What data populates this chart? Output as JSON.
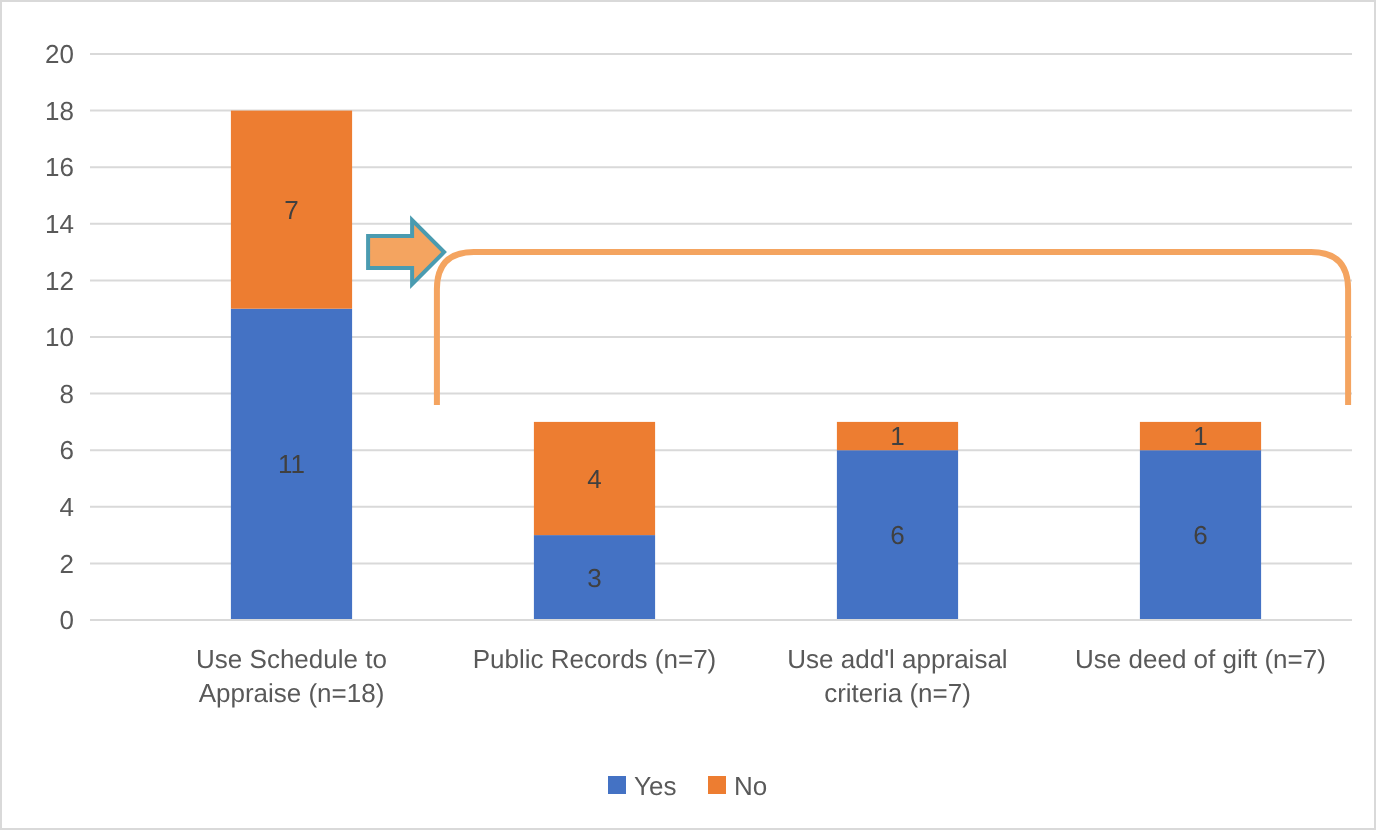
{
  "chart_data": {
    "type": "bar",
    "stacked": true,
    "categories": [
      "Use Schedule to Appraise (n=18)",
      "Public Records (n=7)",
      "Use add'l appraisal criteria (n=7)",
      "Use deed of gift (n=7)"
    ],
    "series": [
      {
        "name": "Yes",
        "color": "#4472c4",
        "values": [
          11,
          3,
          6,
          6
        ]
      },
      {
        "name": "No",
        "color": "#ed7d31",
        "values": [
          7,
          4,
          1,
          1
        ]
      }
    ],
    "ylim": [
      0,
      20
    ],
    "yticks": [
      0,
      2,
      4,
      6,
      8,
      10,
      12,
      14,
      16,
      18,
      20
    ],
    "grid": "y",
    "legend": "bottom",
    "data_labels": true
  }
}
